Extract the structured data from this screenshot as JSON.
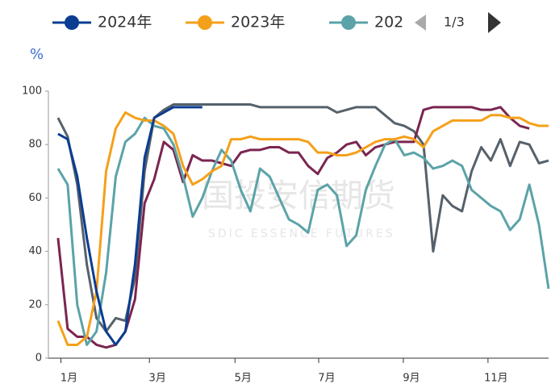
{
  "chart_data": {
    "type": "line",
    "y_label": "%",
    "watermark": "国投安信期货",
    "watermark_sub": "SDIC ESSENCE FUTURES",
    "legend_page": "1/3",
    "x": [
      1,
      2,
      3,
      4,
      5,
      6,
      7,
      8,
      9,
      10,
      11,
      12,
      13,
      14,
      15,
      16,
      17,
      18,
      19,
      20,
      21,
      22,
      23,
      24,
      25,
      26,
      27,
      28,
      29,
      30,
      31,
      32,
      33,
      34,
      35,
      36,
      37,
      38,
      39,
      40,
      41,
      42,
      43,
      44,
      45,
      46,
      47,
      48,
      49,
      50,
      51,
      52
    ],
    "xlim": [
      0,
      52
    ],
    "xticks": [
      {
        "value": 1.3,
        "label": "1月"
      },
      {
        "value": 10.5,
        "label": "3月"
      },
      {
        "value": 19.4,
        "label": "5月"
      },
      {
        "value": 28.1,
        "label": "7月"
      },
      {
        "value": 36.9,
        "label": "9月"
      },
      {
        "value": 45.7,
        "label": "11月"
      }
    ],
    "ylim": [
      0,
      100
    ],
    "yticks": [
      0,
      20,
      40,
      60,
      80,
      100
    ],
    "series": [
      {
        "name": "2024年",
        "color": "#0b3d91",
        "values": [
          84,
          82,
          68,
          45,
          25,
          10,
          5,
          10,
          35,
          75,
          90,
          92,
          94,
          94,
          94,
          94,
          null,
          null,
          null,
          null,
          null,
          null,
          null,
          null,
          null,
          null,
          null,
          null,
          null,
          null,
          null,
          null,
          null,
          null,
          null,
          null,
          null,
          null,
          null,
          null,
          null,
          null,
          null,
          null,
          null,
          null,
          null,
          null,
          null,
          null,
          null,
          null
        ]
      },
      {
        "name": "2023年",
        "color": "#f5a01a",
        "values": [
          14,
          5,
          5,
          8,
          25,
          70,
          86,
          92,
          90,
          89,
          89,
          87,
          84,
          72,
          65,
          67,
          70,
          72,
          82,
          82,
          83,
          82,
          82,
          82,
          82,
          82,
          81,
          77,
          77,
          76,
          76,
          77,
          79,
          81,
          82,
          82,
          83,
          82,
          79,
          85,
          87,
          89,
          89,
          89,
          89,
          91,
          91,
          90,
          90,
          88,
          87,
          87
        ]
      },
      {
        "name": "202",
        "color": "#5ba3a8",
        "values": [
          71,
          65,
          20,
          5,
          10,
          32,
          68,
          81,
          84,
          90,
          87,
          86,
          80,
          68,
          53,
          60,
          70,
          78,
          74,
          63,
          55,
          71,
          68,
          60,
          52,
          50,
          47,
          63,
          65,
          61,
          42,
          46,
          63,
          72,
          80,
          82,
          76,
          77,
          75,
          71,
          72,
          74,
          72,
          63,
          60,
          57,
          55,
          48,
          52,
          65,
          50,
          26
        ]
      },
      {
        "color": "#7b2550",
        "values": [
          45,
          11,
          8,
          8,
          5,
          4,
          5,
          10,
          22,
          58,
          67,
          81,
          78,
          66,
          76,
          74,
          74,
          73,
          72,
          77,
          78,
          78,
          79,
          79,
          77,
          77,
          72,
          69,
          75,
          77,
          80,
          81,
          76,
          79,
          80,
          81,
          81,
          81,
          93,
          94,
          94,
          94,
          94,
          94,
          93,
          93,
          94,
          90,
          87,
          86,
          null,
          null
        ]
      },
      {
        "color": "#56616b",
        "values": [
          90,
          83,
          65,
          35,
          15,
          10,
          15,
          14,
          30,
          70,
          90,
          93,
          95,
          95,
          95,
          95,
          95,
          95,
          95,
          95,
          95,
          94,
          94,
          94,
          94,
          94,
          94,
          94,
          94,
          92,
          93,
          94,
          94,
          94,
          91,
          88,
          87,
          85,
          80,
          40,
          61,
          57,
          55,
          70,
          79,
          74,
          82,
          72,
          81,
          80,
          73,
          74
        ]
      }
    ]
  }
}
